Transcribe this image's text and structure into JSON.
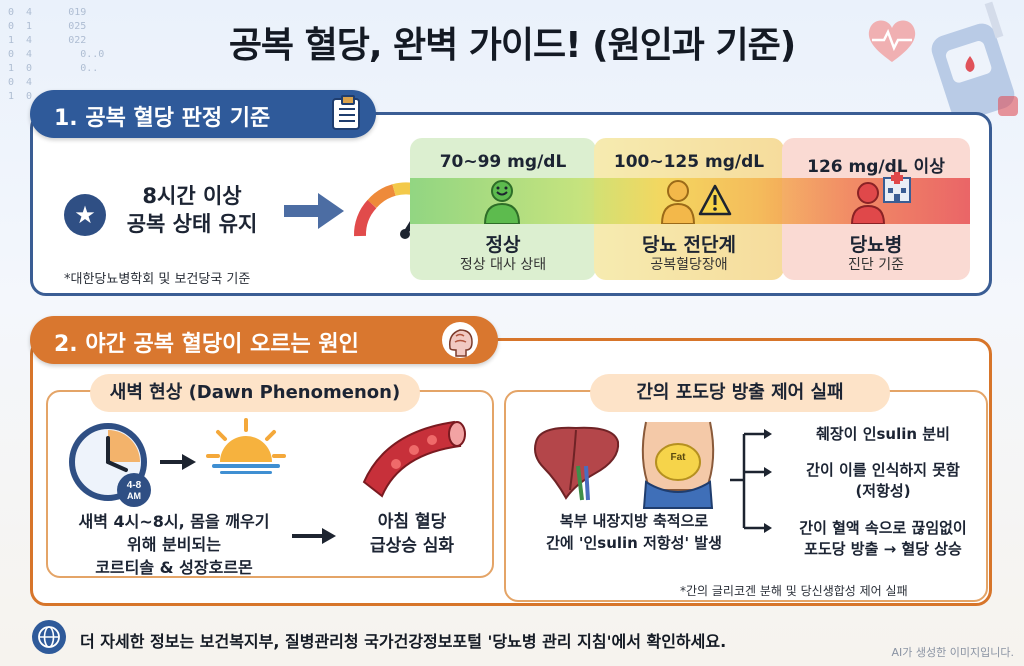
{
  "title": "공복 혈당, 완벽 가이드! (원인과 기준)",
  "section1": {
    "heading": "1. 공복 혈당 판정 기준",
    "condition_line1": "8시간 이상",
    "condition_line2": "공복 상태 유지",
    "footnote": "*대한당뇨병학회 및 보건당국 기준",
    "zones": [
      {
        "range": "70~99 mg/dL",
        "label": "정상",
        "sub": "정상 대사 상태",
        "color": "#3a9a3d"
      },
      {
        "range": "100~125 mg/dL",
        "label": "당뇨 전단계",
        "sub": "공복혈당장애",
        "color": "#e39a22"
      },
      {
        "range": "126 mg/dL 이상",
        "label": "당뇨병",
        "sub": "진단 기준",
        "color": "#d84848"
      }
    ]
  },
  "section2": {
    "heading": "2. 야간 공복 혈당이 오르는 원인",
    "dawn": {
      "title": "새벽 현상 (Dawn Phenomenon)",
      "clock_badge_top": "4-8",
      "clock_badge_bottom": "AM",
      "cause_line1": "새벽 4시~8시, 몸을 깨우기",
      "cause_line2": "위해 분비되는",
      "cause_line3": "코르티솔 & 성장호르몬",
      "effect_line1": "아침 혈당",
      "effect_line2": "급상승 심화"
    },
    "liver": {
      "title": "간의 포도당 방출 제어 실패",
      "fat_label": "Fat",
      "cause_line1": "복부 내장지방 축적으로",
      "cause_line2": "간에 '인sulin 저항성' 발생",
      "steps": [
        {
          "line1": "췌장이 인sulin 분비",
          "line2": ""
        },
        {
          "line1": "간이 이를 인식하지 못함",
          "line2": "(저항성)"
        },
        {
          "line1": "간이 혈액 속으로 끊임없이",
          "line2": "포도당 방출 → 혈당 상승"
        }
      ],
      "footnote": "*간의 글리코겐 분해 및 당신생합성 제어 실패"
    }
  },
  "footer": {
    "text": "더 자세한 정보는 보건복지부, 질병관리청 국가건강정보포털 '당뇨병 관리 지침'에서 확인하세요.",
    "ai_note": "AI가 생성한 이미지입니다."
  },
  "icons": {
    "clipboard": "clipboard-icon",
    "brain": "brain-icon",
    "globe": "globe-icon",
    "star": "star-icon"
  }
}
